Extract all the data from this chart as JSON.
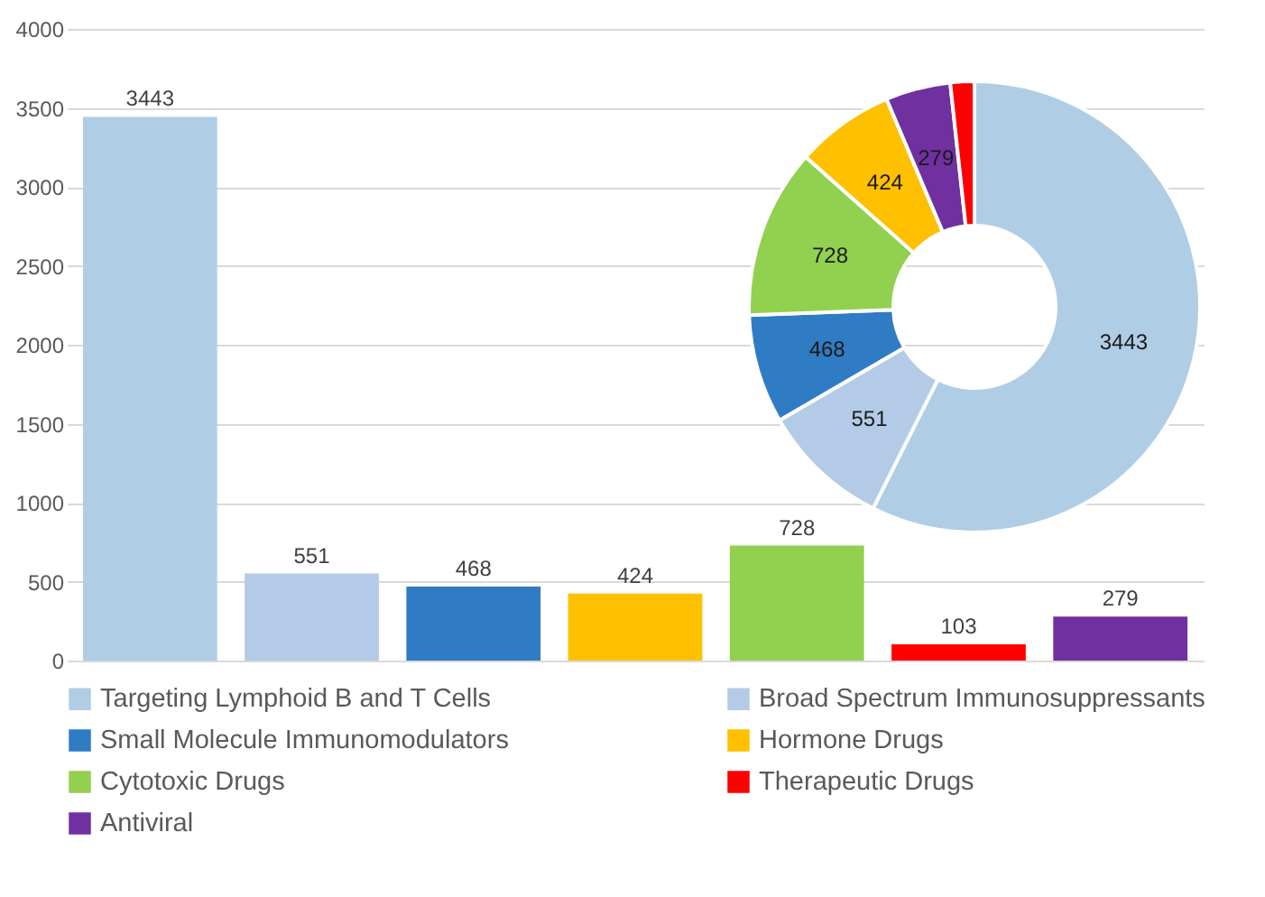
{
  "chart_data": [
    {
      "type": "bar",
      "categories": [
        null,
        null,
        null,
        null,
        null,
        null,
        null
      ],
      "series": [
        {
          "name": "Targeting Lymphoid B and T Cells",
          "color": "#b0cde6",
          "values": [
            3443,
            null,
            null,
            null,
            null,
            null,
            null
          ]
        },
        {
          "name": "Broad Spectrum Immunosuppressants",
          "color": "#b3cbe6",
          "values": [
            null,
            551,
            null,
            null,
            null,
            null,
            null
          ]
        },
        {
          "name": "Small Molecule Immunomodulators",
          "color": "#2f7cc4",
          "values": [
            null,
            null,
            468,
            null,
            null,
            null,
            null
          ]
        },
        {
          "name": "Hormone Drugs",
          "color": "#ffc000",
          "values": [
            null,
            null,
            null,
            424,
            null,
            null,
            null
          ]
        },
        {
          "name": "Cytotoxic Drugs",
          "color": "#92d050",
          "values": [
            null,
            null,
            null,
            null,
            728,
            null,
            null
          ]
        },
        {
          "name": "Therapeutic Drugs",
          "color": "#ff0000",
          "values": [
            null,
            null,
            null,
            null,
            null,
            103,
            null
          ]
        },
        {
          "name": "Antiviral",
          "color": "#7030a0",
          "values": [
            null,
            null,
            null,
            null,
            null,
            null,
            279
          ]
        }
      ],
      "ylim": [
        0,
        4000
      ],
      "yticks": [
        0,
        500,
        1000,
        1500,
        2000,
        2500,
        3000,
        3500,
        4000
      ],
      "grid": "y",
      "legend": "bottom",
      "tick_labels": "y",
      "data_labels": true
    },
    {
      "type": "donut",
      "categories": [
        null,
        null,
        null,
        null,
        null,
        null,
        null
      ],
      "values": [
        3443,
        551,
        468,
        728,
        424,
        279,
        103
      ],
      "colors": [
        "#b0cde6",
        "#b3cbe6",
        "#2f7cc4",
        "#92d050",
        "#ffc000",
        "#7030a0",
        "#ff0000"
      ],
      "value_labels": [
        "3443",
        "551",
        "468",
        "728",
        "424",
        "279",
        null
      ]
    }
  ]
}
